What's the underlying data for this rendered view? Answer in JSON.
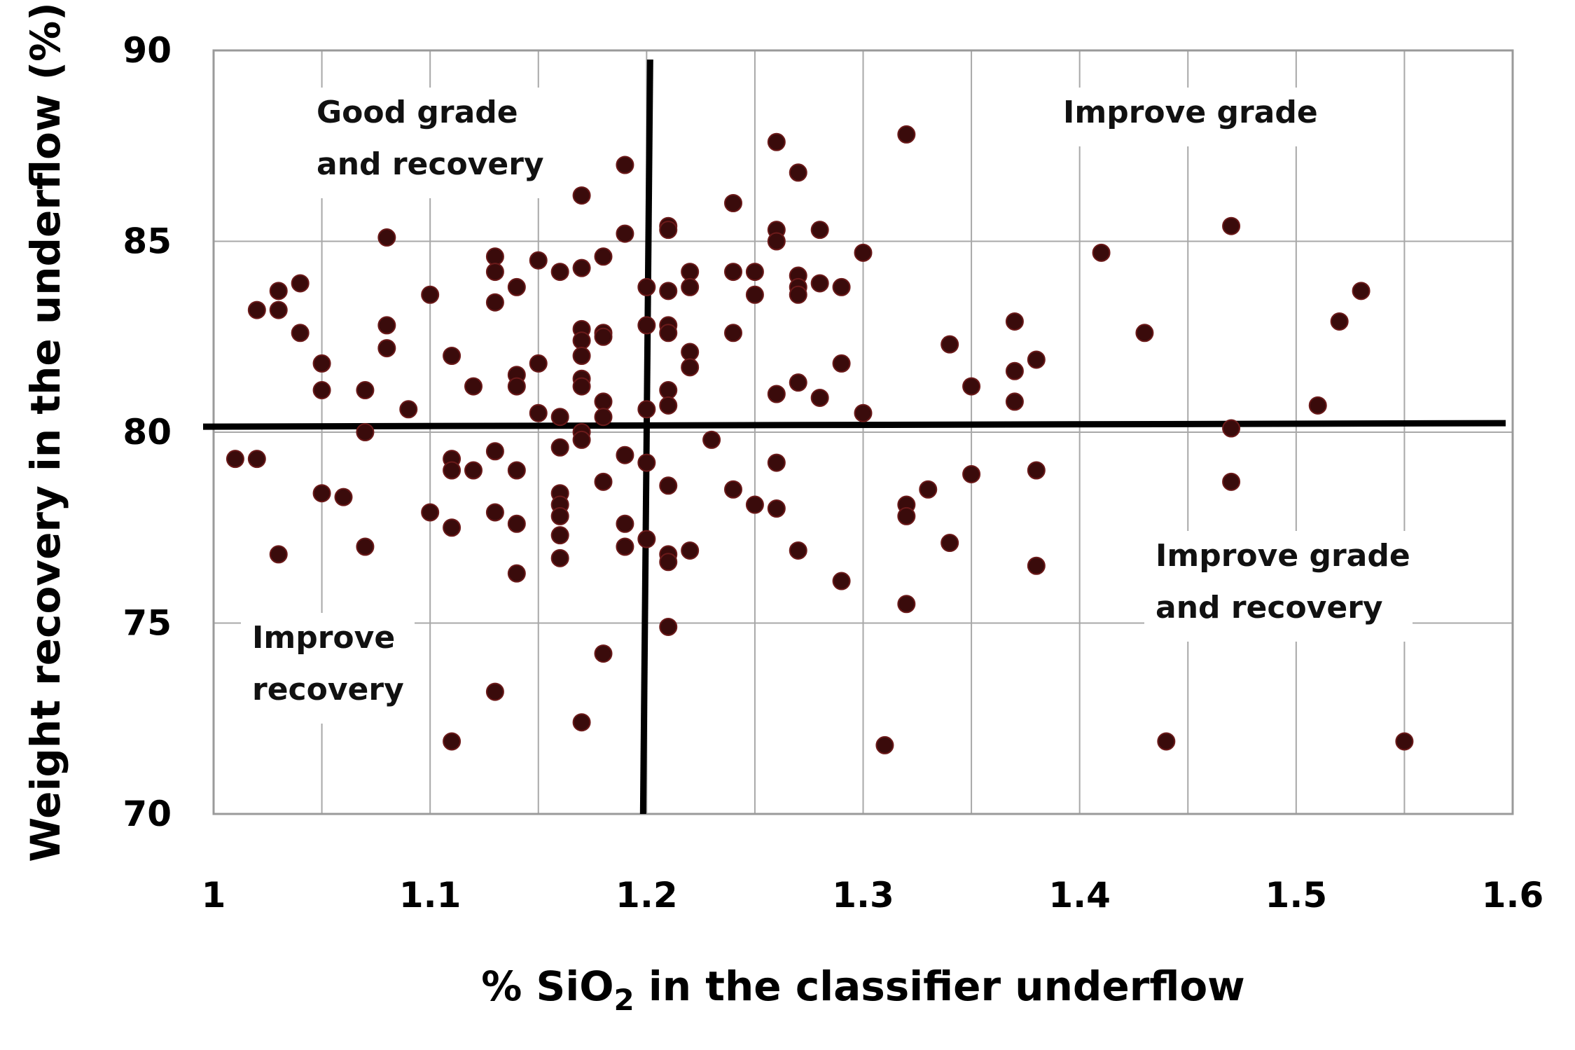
{
  "chart_data": {
    "type": "scatter",
    "xlabel_parts": [
      "% SiO",
      "2",
      " in the classifier underflow"
    ],
    "ylabel": "Weight recovery in the underflow (%)",
    "xlim": [
      1.0,
      1.6
    ],
    "ylim": [
      70,
      90
    ],
    "x_ticks": [
      "1",
      "1.1",
      "1.2",
      "1.3",
      "1.4",
      "1.5",
      "1.6"
    ],
    "y_ticks": [
      "70",
      "75",
      "80",
      "85",
      "90"
    ],
    "grid": true,
    "marker_color": "#3a0b0b",
    "divider_lines": {
      "x": 1.2,
      "y": 80.2
    },
    "quadrant_labels": {
      "top_left": [
        "Good grade",
        "and recovery"
      ],
      "top_right": [
        "Improve grade"
      ],
      "bottom_left": [
        "Improve",
        "recovery"
      ],
      "bottom_right": [
        "Improve grade",
        "and recovery"
      ]
    },
    "points": [
      [
        1.01,
        79.3
      ],
      [
        1.02,
        79.3
      ],
      [
        1.02,
        83.2
      ],
      [
        1.03,
        83.7
      ],
      [
        1.03,
        83.2
      ],
      [
        1.03,
        76.8
      ],
      [
        1.04,
        83.9
      ],
      [
        1.04,
        82.6
      ],
      [
        1.05,
        81.8
      ],
      [
        1.05,
        81.1
      ],
      [
        1.05,
        78.4
      ],
      [
        1.06,
        78.3
      ],
      [
        1.07,
        81.1
      ],
      [
        1.07,
        80.0
      ],
      [
        1.07,
        77.0
      ],
      [
        1.08,
        85.1
      ],
      [
        1.08,
        82.8
      ],
      [
        1.08,
        82.2
      ],
      [
        1.09,
        80.6
      ],
      [
        1.1,
        83.6
      ],
      [
        1.1,
        77.9
      ],
      [
        1.11,
        82.0
      ],
      [
        1.11,
        79.3
      ],
      [
        1.11,
        79.0
      ],
      [
        1.11,
        77.5
      ],
      [
        1.11,
        71.9
      ],
      [
        1.12,
        81.2
      ],
      [
        1.12,
        79.0
      ],
      [
        1.13,
        84.6
      ],
      [
        1.13,
        84.2
      ],
      [
        1.13,
        83.4
      ],
      [
        1.13,
        79.5
      ],
      [
        1.13,
        77.9
      ],
      [
        1.13,
        73.2
      ],
      [
        1.14,
        83.8
      ],
      [
        1.14,
        81.5
      ],
      [
        1.14,
        81.2
      ],
      [
        1.14,
        79.0
      ],
      [
        1.14,
        77.6
      ],
      [
        1.14,
        76.3
      ],
      [
        1.15,
        84.5
      ],
      [
        1.15,
        81.8
      ],
      [
        1.15,
        80.5
      ],
      [
        1.16,
        84.2
      ],
      [
        1.16,
        80.4
      ],
      [
        1.16,
        79.6
      ],
      [
        1.16,
        78.4
      ],
      [
        1.16,
        78.1
      ],
      [
        1.16,
        77.8
      ],
      [
        1.16,
        77.3
      ],
      [
        1.16,
        76.7
      ],
      [
        1.17,
        86.2
      ],
      [
        1.17,
        84.3
      ],
      [
        1.17,
        82.7
      ],
      [
        1.17,
        82.4
      ],
      [
        1.17,
        82.0
      ],
      [
        1.17,
        81.4
      ],
      [
        1.17,
        81.2
      ],
      [
        1.17,
        80.0
      ],
      [
        1.17,
        79.8
      ],
      [
        1.17,
        72.4
      ],
      [
        1.18,
        84.6
      ],
      [
        1.18,
        82.6
      ],
      [
        1.18,
        82.5
      ],
      [
        1.18,
        80.8
      ],
      [
        1.18,
        80.4
      ],
      [
        1.18,
        78.7
      ],
      [
        1.18,
        74.2
      ],
      [
        1.19,
        87.0
      ],
      [
        1.19,
        85.2
      ],
      [
        1.19,
        79.4
      ],
      [
        1.19,
        77.6
      ],
      [
        1.19,
        77.0
      ],
      [
        1.2,
        83.8
      ],
      [
        1.2,
        82.8
      ],
      [
        1.2,
        80.6
      ],
      [
        1.2,
        79.2
      ],
      [
        1.2,
        77.2
      ],
      [
        1.21,
        85.4
      ],
      [
        1.21,
        85.3
      ],
      [
        1.21,
        83.7
      ],
      [
        1.21,
        82.8
      ],
      [
        1.21,
        82.6
      ],
      [
        1.21,
        81.1
      ],
      [
        1.21,
        80.7
      ],
      [
        1.21,
        78.6
      ],
      [
        1.21,
        76.8
      ],
      [
        1.21,
        76.6
      ],
      [
        1.21,
        74.9
      ],
      [
        1.22,
        84.2
      ],
      [
        1.22,
        83.8
      ],
      [
        1.22,
        82.1
      ],
      [
        1.22,
        81.7
      ],
      [
        1.22,
        76.9
      ],
      [
        1.23,
        79.8
      ],
      [
        1.24,
        86.0
      ],
      [
        1.24,
        84.2
      ],
      [
        1.24,
        82.6
      ],
      [
        1.24,
        78.5
      ],
      [
        1.25,
        84.2
      ],
      [
        1.25,
        83.6
      ],
      [
        1.25,
        78.1
      ],
      [
        1.26,
        87.6
      ],
      [
        1.26,
        85.3
      ],
      [
        1.26,
        85.0
      ],
      [
        1.26,
        81.0
      ],
      [
        1.26,
        79.2
      ],
      [
        1.26,
        78.0
      ],
      [
        1.27,
        86.8
      ],
      [
        1.27,
        84.1
      ],
      [
        1.27,
        83.8
      ],
      [
        1.27,
        83.6
      ],
      [
        1.27,
        81.3
      ],
      [
        1.27,
        76.9
      ],
      [
        1.28,
        85.3
      ],
      [
        1.28,
        83.9
      ],
      [
        1.28,
        80.9
      ],
      [
        1.29,
        83.8
      ],
      [
        1.29,
        81.8
      ],
      [
        1.29,
        76.1
      ],
      [
        1.3,
        84.7
      ],
      [
        1.3,
        80.5
      ],
      [
        1.31,
        71.8
      ],
      [
        1.32,
        87.8
      ],
      [
        1.32,
        78.1
      ],
      [
        1.32,
        77.8
      ],
      [
        1.32,
        75.5
      ],
      [
        1.33,
        78.5
      ],
      [
        1.34,
        82.3
      ],
      [
        1.34,
        77.1
      ],
      [
        1.35,
        81.2
      ],
      [
        1.35,
        78.9
      ],
      [
        1.37,
        82.9
      ],
      [
        1.37,
        81.6
      ],
      [
        1.37,
        80.8
      ],
      [
        1.38,
        81.9
      ],
      [
        1.38,
        79.0
      ],
      [
        1.38,
        76.5
      ],
      [
        1.41,
        84.7
      ],
      [
        1.43,
        82.6
      ],
      [
        1.44,
        71.9
      ],
      [
        1.47,
        85.4
      ],
      [
        1.47,
        80.1
      ],
      [
        1.47,
        78.7
      ],
      [
        1.51,
        80.7
      ],
      [
        1.52,
        82.9
      ],
      [
        1.53,
        83.7
      ],
      [
        1.55,
        71.9
      ]
    ]
  }
}
